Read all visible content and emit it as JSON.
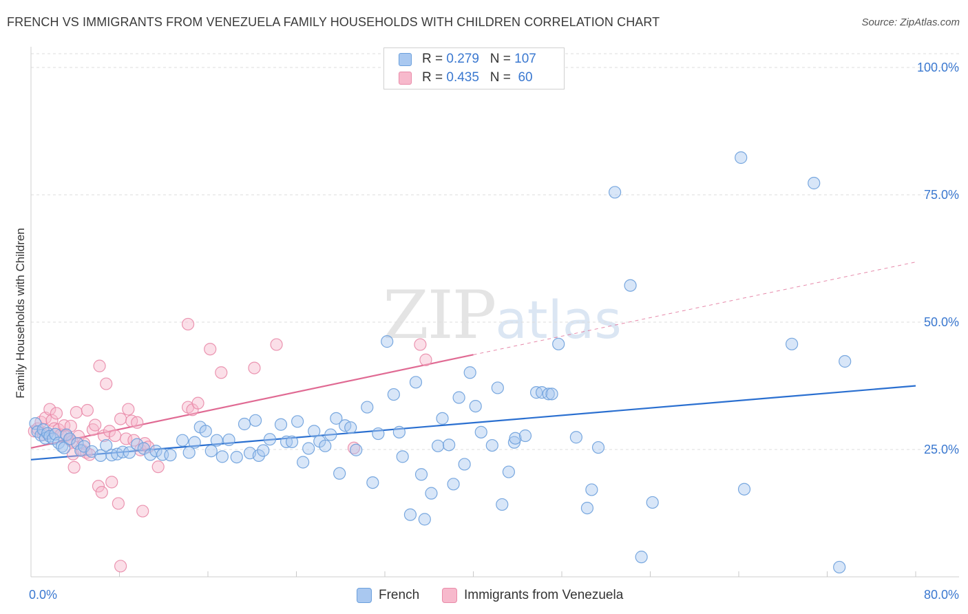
{
  "title": "FRENCH VS IMMIGRANTS FROM VENEZUELA FAMILY HOUSEHOLDS WITH CHILDREN CORRELATION CHART",
  "source": "Source: ZipAtlas.com",
  "watermark": {
    "zip": "ZIP",
    "atlas": "atlas"
  },
  "colors": {
    "french": "#a9c8f0",
    "french_stroke": "#6a9fdc",
    "french_line": "#2a6fd0",
    "venezuela": "#f7b9cc",
    "venezuela_stroke": "#e98aa8",
    "venezuela_line": "#e06a93",
    "tick_label": "#3a78d0",
    "grid": "#dedede"
  },
  "legend_top": [
    {
      "r_label": "R =",
      "r_value": "0.279",
      "n_label": "N =",
      "n_value": "107"
    },
    {
      "r_label": "R =",
      "r_value": "0.435",
      "n_label": "N =",
      "n_value": " 60"
    }
  ],
  "chart_data": {
    "type": "scatter",
    "title": "FRENCH VS IMMIGRANTS FROM VENEZUELA FAMILY HOUSEHOLDS WITH CHILDREN CORRELATION CHART",
    "xlabel": "",
    "ylabel": "Family Households with Children",
    "xlim": [
      0,
      80
    ],
    "ylim": [
      0,
      100
    ],
    "x_tick_labels": [
      "0.0%",
      "80.0%"
    ],
    "y_ticks": [
      25,
      50,
      75,
      100
    ],
    "y_tick_labels": [
      "25.0%",
      "50.0%",
      "75.0%",
      "100.0%"
    ],
    "grid": true,
    "legend_position": "bottom",
    "series": [
      {
        "name": "French",
        "r": 0.279,
        "n": 107,
        "trend": {
          "x0": 0,
          "y0": 23.0,
          "x1": 80,
          "y1": 37.5
        },
        "points": [
          [
            0.4,
            30.1
          ],
          [
            0.6,
            28.5
          ],
          [
            0.9,
            27.8
          ],
          [
            1.1,
            28.9
          ],
          [
            1.3,
            27.2
          ],
          [
            1.5,
            28.2
          ],
          [
            1.7,
            27.6
          ],
          [
            2.0,
            27.1
          ],
          [
            2.2,
            28.0
          ],
          [
            2.5,
            26.3
          ],
          [
            2.8,
            25.6
          ],
          [
            3.0,
            25.3
          ],
          [
            3.2,
            27.9
          ],
          [
            3.5,
            27.1
          ],
          [
            4.2,
            26.2
          ],
          [
            4.5,
            24.8
          ],
          [
            4.8,
            25.6
          ],
          [
            5.5,
            24.6
          ],
          [
            6.3,
            23.8
          ],
          [
            6.8,
            25.8
          ],
          [
            7.3,
            23.9
          ],
          [
            7.8,
            24.1
          ],
          [
            8.3,
            24.5
          ],
          [
            8.9,
            24.4
          ],
          [
            9.6,
            26.0
          ],
          [
            10.2,
            25.2
          ],
          [
            10.8,
            24.0
          ],
          [
            11.3,
            24.7
          ],
          [
            11.9,
            24.0
          ],
          [
            12.6,
            23.9
          ],
          [
            13.7,
            26.8
          ],
          [
            14.3,
            24.4
          ],
          [
            14.8,
            26.4
          ],
          [
            15.3,
            29.4
          ],
          [
            15.8,
            28.6
          ],
          [
            16.3,
            24.7
          ],
          [
            16.8,
            26.8
          ],
          [
            17.3,
            23.6
          ],
          [
            17.9,
            26.9
          ],
          [
            18.6,
            23.5
          ],
          [
            19.3,
            30.0
          ],
          [
            19.8,
            24.3
          ],
          [
            20.3,
            30.7
          ],
          [
            20.6,
            23.8
          ],
          [
            21.0,
            24.8
          ],
          [
            21.6,
            27.0
          ],
          [
            22.6,
            29.9
          ],
          [
            23.1,
            26.5
          ],
          [
            23.6,
            26.5
          ],
          [
            24.1,
            30.5
          ],
          [
            24.6,
            22.5
          ],
          [
            25.1,
            25.2
          ],
          [
            25.6,
            28.6
          ],
          [
            26.1,
            26.6
          ],
          [
            26.6,
            25.7
          ],
          [
            27.1,
            27.9
          ],
          [
            27.6,
            31.1
          ],
          [
            27.9,
            20.3
          ],
          [
            28.4,
            29.7
          ],
          [
            28.9,
            29.3
          ],
          [
            29.4,
            24.9
          ],
          [
            30.4,
            33.3
          ],
          [
            30.9,
            18.5
          ],
          [
            31.4,
            28.1
          ],
          [
            32.2,
            46.2
          ],
          [
            32.8,
            35.8
          ],
          [
            33.3,
            28.4
          ],
          [
            33.6,
            23.6
          ],
          [
            34.3,
            12.2
          ],
          [
            34.8,
            38.2
          ],
          [
            35.3,
            20.1
          ],
          [
            35.6,
            11.3
          ],
          [
            36.2,
            16.4
          ],
          [
            36.8,
            25.7
          ],
          [
            37.2,
            31.1
          ],
          [
            37.8,
            25.9
          ],
          [
            38.2,
            18.2
          ],
          [
            38.7,
            35.2
          ],
          [
            39.2,
            22.1
          ],
          [
            39.7,
            40.1
          ],
          [
            40.2,
            33.5
          ],
          [
            40.7,
            28.4
          ],
          [
            41.7,
            25.8
          ],
          [
            42.2,
            37.1
          ],
          [
            42.6,
            14.2
          ],
          [
            43.2,
            20.6
          ],
          [
            43.7,
            26.4
          ],
          [
            43.8,
            27.2
          ],
          [
            44.7,
            27.7
          ],
          [
            45.7,
            36.2
          ],
          [
            46.2,
            36.2
          ],
          [
            46.8,
            35.9
          ],
          [
            47.1,
            35.9
          ],
          [
            47.7,
            45.7
          ],
          [
            49.3,
            27.4
          ],
          [
            50.3,
            13.5
          ],
          [
            50.7,
            17.1
          ],
          [
            51.3,
            25.4
          ],
          [
            52.8,
            75.5
          ],
          [
            54.2,
            57.2
          ],
          [
            55.2,
            3.9
          ],
          [
            56.2,
            14.6
          ],
          [
            64.2,
            82.3
          ],
          [
            64.5,
            17.2
          ],
          [
            68.8,
            45.7
          ],
          [
            70.8,
            77.3
          ],
          [
            73.1,
            1.9
          ],
          [
            73.6,
            42.3
          ]
        ]
      },
      {
        "name": "Immigrants from Venezuela",
        "r": 0.435,
        "n": 60,
        "trend": {
          "x0": 0,
          "y0": 25.3,
          "x1": 40,
          "y1": 43.6,
          "dash_x1": 80,
          "dash_y1": 61.8
        },
        "points": [
          [
            0.3,
            28.6
          ],
          [
            0.6,
            29.1
          ],
          [
            0.9,
            30.4
          ],
          [
            1.1,
            27.9
          ],
          [
            1.3,
            31.2
          ],
          [
            1.5,
            28.1
          ],
          [
            1.7,
            32.9
          ],
          [
            1.9,
            30.7
          ],
          [
            2.1,
            29.1
          ],
          [
            2.3,
            32.1
          ],
          [
            2.5,
            28.9
          ],
          [
            2.7,
            27.9
          ],
          [
            3.0,
            29.7
          ],
          [
            3.2,
            27.7
          ],
          [
            3.5,
            26.9
          ],
          [
            3.6,
            29.6
          ],
          [
            3.7,
            26.6
          ],
          [
            3.8,
            24.1
          ],
          [
            3.9,
            21.5
          ],
          [
            4.1,
            32.3
          ],
          [
            4.3,
            27.6
          ],
          [
            4.6,
            24.9
          ],
          [
            4.8,
            26.2
          ],
          [
            5.0,
            24.4
          ],
          [
            5.1,
            32.7
          ],
          [
            5.3,
            24.0
          ],
          [
            5.6,
            28.9
          ],
          [
            5.8,
            29.8
          ],
          [
            6.1,
            17.8
          ],
          [
            6.2,
            41.4
          ],
          [
            6.4,
            16.6
          ],
          [
            6.6,
            27.7
          ],
          [
            6.8,
            37.9
          ],
          [
            7.1,
            28.6
          ],
          [
            7.3,
            18.6
          ],
          [
            7.6,
            27.7
          ],
          [
            7.9,
            14.4
          ],
          [
            8.1,
            31.0
          ],
          [
            8.1,
            2.1
          ],
          [
            8.6,
            27.1
          ],
          [
            8.8,
            32.9
          ],
          [
            9.1,
            30.6
          ],
          [
            9.3,
            26.8
          ],
          [
            9.6,
            30.3
          ],
          [
            9.9,
            24.9
          ],
          [
            10.1,
            12.9
          ],
          [
            10.3,
            26.2
          ],
          [
            10.6,
            25.5
          ],
          [
            11.5,
            21.6
          ],
          [
            14.2,
            49.6
          ],
          [
            14.2,
            33.3
          ],
          [
            14.6,
            32.8
          ],
          [
            15.1,
            34.1
          ],
          [
            16.2,
            44.7
          ],
          [
            17.2,
            40.1
          ],
          [
            20.2,
            41.0
          ],
          [
            22.2,
            45.6
          ],
          [
            29.2,
            25.3
          ],
          [
            35.2,
            45.6
          ],
          [
            35.7,
            42.6
          ]
        ]
      }
    ]
  }
}
